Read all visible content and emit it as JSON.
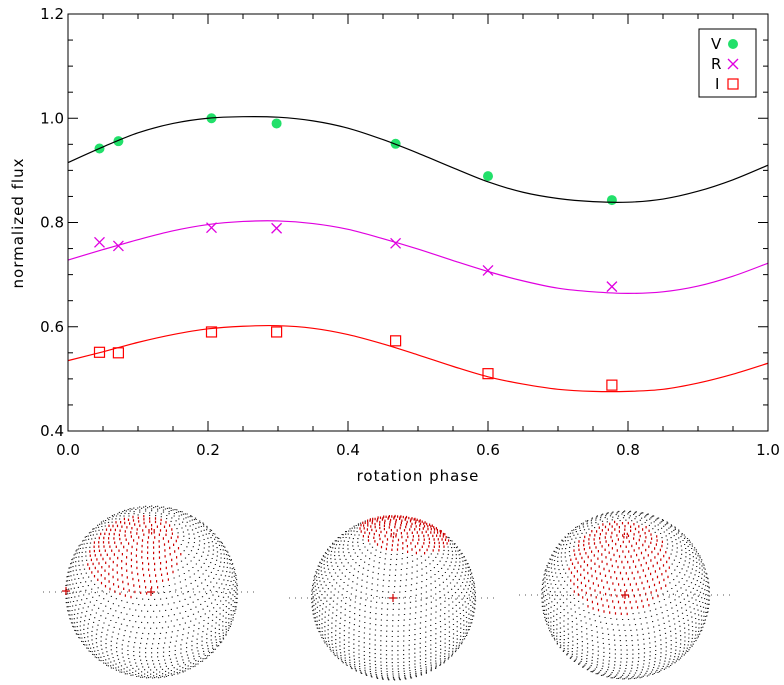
{
  "chart_data": {
    "type": "scatter",
    "xlabel": "rotation phase",
    "ylabel": "normalized flux",
    "xlim": [
      0.0,
      1.0
    ],
    "ylim": [
      0.4,
      1.2
    ],
    "xticks": [
      "0.0",
      "0.2",
      "0.4",
      "0.6",
      "0.8",
      "1.0"
    ],
    "yticks": [
      "0.4",
      "0.6",
      "0.8",
      "1.0",
      "1.2"
    ],
    "grid": false,
    "legend_position": "top-right",
    "series": [
      {
        "name": "V",
        "marker": "filled-circle",
        "color": "#22e06a",
        "points": [
          [
            0.045,
            0.942
          ],
          [
            0.072,
            0.956
          ],
          [
            0.205,
            1.0
          ],
          [
            0.298,
            0.99
          ],
          [
            0.468,
            0.951
          ],
          [
            0.6,
            0.889
          ],
          [
            0.777,
            0.843
          ]
        ],
        "model": [
          [
            0.0,
            0.915
          ],
          [
            0.05,
            0.945
          ],
          [
            0.1,
            0.972
          ],
          [
            0.15,
            0.99
          ],
          [
            0.2,
            1.0
          ],
          [
            0.25,
            1.003
          ],
          [
            0.3,
            1.002
          ],
          [
            0.35,
            0.995
          ],
          [
            0.4,
            0.981
          ],
          [
            0.45,
            0.959
          ],
          [
            0.5,
            0.933
          ],
          [
            0.55,
            0.905
          ],
          [
            0.6,
            0.878
          ],
          [
            0.65,
            0.858
          ],
          [
            0.7,
            0.846
          ],
          [
            0.75,
            0.84
          ],
          [
            0.8,
            0.839
          ],
          [
            0.85,
            0.845
          ],
          [
            0.9,
            0.86
          ],
          [
            0.95,
            0.882
          ],
          [
            1.0,
            0.91
          ]
        ],
        "model_color": "#000000"
      },
      {
        "name": "R",
        "marker": "cross",
        "color": "#e000e0",
        "points": [
          [
            0.045,
            0.762
          ],
          [
            0.072,
            0.755
          ],
          [
            0.205,
            0.79
          ],
          [
            0.298,
            0.789
          ],
          [
            0.468,
            0.76
          ],
          [
            0.6,
            0.708
          ],
          [
            0.777,
            0.677
          ]
        ],
        "model": [
          [
            0.0,
            0.728
          ],
          [
            0.05,
            0.748
          ],
          [
            0.1,
            0.767
          ],
          [
            0.15,
            0.784
          ],
          [
            0.2,
            0.796
          ],
          [
            0.25,
            0.802
          ],
          [
            0.3,
            0.803
          ],
          [
            0.35,
            0.798
          ],
          [
            0.4,
            0.787
          ],
          [
            0.45,
            0.769
          ],
          [
            0.5,
            0.749
          ],
          [
            0.55,
            0.727
          ],
          [
            0.6,
            0.706
          ],
          [
            0.65,
            0.688
          ],
          [
            0.7,
            0.674
          ],
          [
            0.75,
            0.667
          ],
          [
            0.8,
            0.664
          ],
          [
            0.85,
            0.667
          ],
          [
            0.9,
            0.678
          ],
          [
            0.95,
            0.697
          ],
          [
            1.0,
            0.722
          ]
        ],
        "model_color": "#e000e0"
      },
      {
        "name": "I",
        "marker": "open-square",
        "color": "#ff0000",
        "points": [
          [
            0.045,
            0.551
          ],
          [
            0.072,
            0.55
          ],
          [
            0.205,
            0.59
          ],
          [
            0.298,
            0.59
          ],
          [
            0.468,
            0.573
          ],
          [
            0.6,
            0.51
          ],
          [
            0.777,
            0.488
          ]
        ],
        "model": [
          [
            0.0,
            0.535
          ],
          [
            0.05,
            0.552
          ],
          [
            0.1,
            0.57
          ],
          [
            0.15,
            0.585
          ],
          [
            0.2,
            0.596
          ],
          [
            0.25,
            0.601
          ],
          [
            0.3,
            0.602
          ],
          [
            0.35,
            0.597
          ],
          [
            0.4,
            0.585
          ],
          [
            0.45,
            0.567
          ],
          [
            0.5,
            0.546
          ],
          [
            0.55,
            0.524
          ],
          [
            0.6,
            0.504
          ],
          [
            0.65,
            0.49
          ],
          [
            0.7,
            0.48
          ],
          [
            0.75,
            0.476
          ],
          [
            0.8,
            0.476
          ],
          [
            0.85,
            0.48
          ],
          [
            0.9,
            0.492
          ],
          [
            0.95,
            0.509
          ],
          [
            1.0,
            0.53
          ]
        ],
        "model_color": "#ff0000"
      }
    ],
    "spot_maps": [
      {
        "spot_color": "#cc0000",
        "grid_color": "#222222"
      },
      {
        "spot_color": "#cc0000",
        "grid_color": "#222222"
      },
      {
        "spot_color": "#cc0000",
        "grid_color": "#222222"
      }
    ]
  }
}
